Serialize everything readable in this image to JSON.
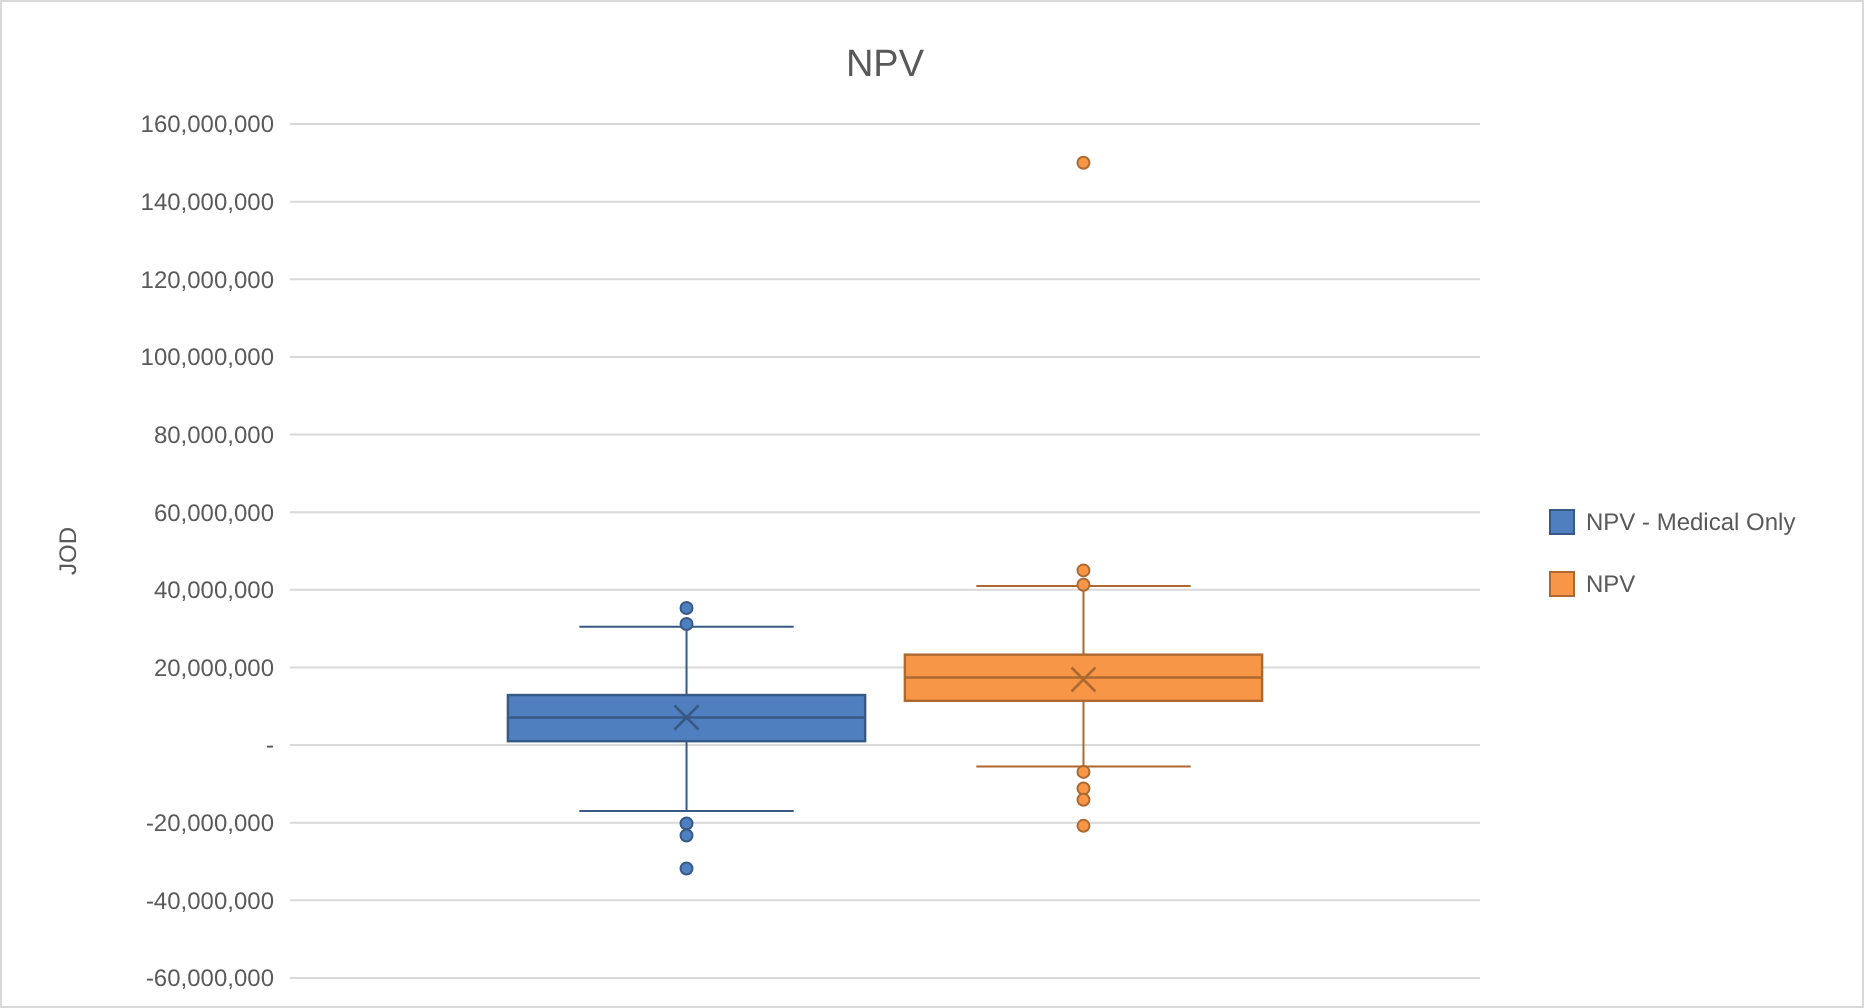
{
  "chart_data": {
    "type": "box",
    "title": "NPV",
    "ylabel": "JOD",
    "categories": [
      null
    ],
    "series": [
      {
        "name": "NPV - Medical Only",
        "color": "#4f7fbf",
        "boxes": [
          {
            "low": -17000000,
            "q1": 1000000,
            "median": 7100000,
            "q3": 12900000,
            "high": 30500000,
            "mean": 7100000,
            "outliers": [
              35300000,
              31200000,
              -20200000,
              -23300000,
              -31800000
            ]
          }
        ]
      },
      {
        "name": "NPV",
        "color": "#f79646",
        "boxes": [
          {
            "low": -5500000,
            "q1": 11400000,
            "median": 17400000,
            "q3": 23300000,
            "high": 41000000,
            "mean": 16900000,
            "outliers": [
              150000000,
              45000000,
              41300000,
              -6900000,
              -11200000,
              -14100000,
              -20800000
            ]
          }
        ]
      }
    ],
    "ylim": [
      -60000000,
      160000000
    ],
    "yticks": [
      {
        "value": -60000000,
        "label": "-60,000,000"
      },
      {
        "value": -40000000,
        "label": "-40,000,000"
      },
      {
        "value": -20000000,
        "label": "-20,000,000"
      },
      {
        "value": 0,
        "label": "-"
      },
      {
        "value": 20000000,
        "label": "20,000,000"
      },
      {
        "value": 40000000,
        "label": "40,000,000"
      },
      {
        "value": 60000000,
        "label": "60,000,000"
      },
      {
        "value": 80000000,
        "label": "80,000,000"
      },
      {
        "value": 100000000,
        "label": "100,000,000"
      },
      {
        "value": 120000000,
        "label": "120,000,000"
      },
      {
        "value": 140000000,
        "label": "140,000,000"
      },
      {
        "value": 160000000,
        "label": "160,000,000"
      }
    ],
    "grid": "y",
    "legend": "right"
  }
}
